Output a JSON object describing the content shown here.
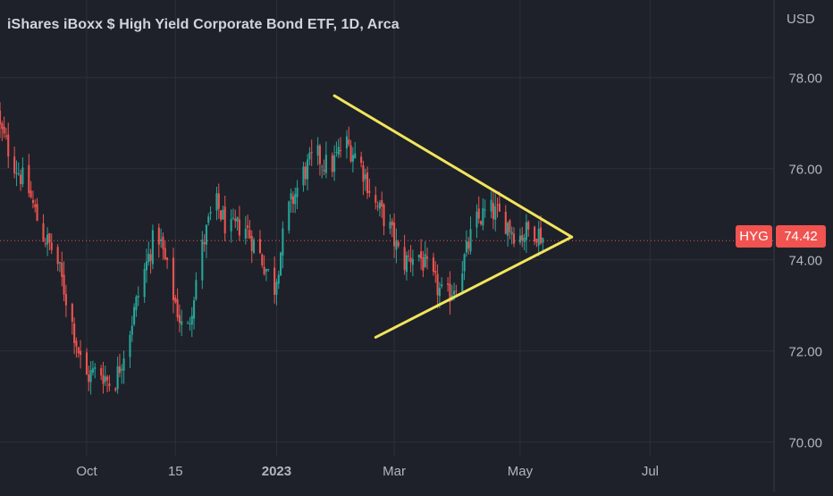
{
  "header": {
    "title": "iShares iBoxx $ High Yield Corporate Bond ETF, 1D, Arca",
    "currency": "USD"
  },
  "price_tag": {
    "symbol": "HYG",
    "value": "74.42"
  },
  "colors": {
    "background": "#1e2129",
    "grid": "#2c303b",
    "up": "#26a69a",
    "down": "#ef5350",
    "trendline": "#f2e55c",
    "price_line": "#ef5350",
    "axis_text": "#b2b5be"
  },
  "chart_data": {
    "type": "candlestick",
    "title": "iShares iBoxx $ High Yield Corporate Bond ETF, 1D, Arca",
    "symbol": "HYG",
    "interval": "1D",
    "exchange": "Arca",
    "currency": "USD",
    "last_price": 74.42,
    "ylim": [
      69.7,
      79.7
    ],
    "y_ticks": [
      "78.00",
      "76.00",
      "74.00",
      "72.00",
      "70.00"
    ],
    "x_ticks": [
      "Oct",
      "15",
      "2023",
      "Mar",
      "May",
      "Jul"
    ],
    "x_tick_dates": [
      "2022-10-03",
      "2022-11-15",
      "2023-01-03",
      "2023-03-01",
      "2023-05-01",
      "2023-07-03"
    ],
    "xlim": [
      "2022-08-22",
      "2023-09-01"
    ],
    "grid": true,
    "close_series": {
      "dates": [
        "2022-08-22",
        "2022-08-29",
        "2022-09-06",
        "2022-09-12",
        "2022-09-19",
        "2022-09-26",
        "2022-10-03",
        "2022-10-10",
        "2022-10-17",
        "2022-10-24",
        "2022-10-31",
        "2022-11-07",
        "2022-11-14",
        "2022-11-21",
        "2022-11-28",
        "2022-12-05",
        "2022-12-12",
        "2022-12-19",
        "2022-12-27",
        "2023-01-03",
        "2023-01-09",
        "2023-01-17",
        "2023-01-23",
        "2023-01-30",
        "2023-02-06",
        "2023-02-13",
        "2023-02-21",
        "2023-02-27",
        "2023-03-06",
        "2023-03-13",
        "2023-03-20",
        "2023-03-27",
        "2023-04-03",
        "2023-04-10",
        "2023-04-17",
        "2023-04-24",
        "2023-05-01",
        "2023-05-08",
        "2023-05-15"
      ],
      "close": [
        77.0,
        76.2,
        75.5,
        74.6,
        74.1,
        72.8,
        71.4,
        71.6,
        71.2,
        72.3,
        73.6,
        74.7,
        73.4,
        72.2,
        74.1,
        75.3,
        74.6,
        74.8,
        74.1,
        73.4,
        75.0,
        75.9,
        76.3,
        76.0,
        76.6,
        76.2,
        75.2,
        74.8,
        73.9,
        74.2,
        73.6,
        73.1,
        73.7,
        74.8,
        75.1,
        74.9,
        74.5,
        74.7,
        74.42
      ]
    },
    "annotations": [
      {
        "type": "triangle-pattern",
        "upper_line": [
          {
            "date": "2023-01-31",
            "price": 77.6
          },
          {
            "date": "2023-05-26",
            "price": 74.5
          }
        ],
        "lower_line": [
          {
            "date": "2023-02-20",
            "price": 72.3
          },
          {
            "date": "2023-05-26",
            "price": 74.5
          }
        ]
      },
      {
        "type": "horizontal-price-line",
        "price": 74.42,
        "style": "dotted"
      }
    ]
  }
}
